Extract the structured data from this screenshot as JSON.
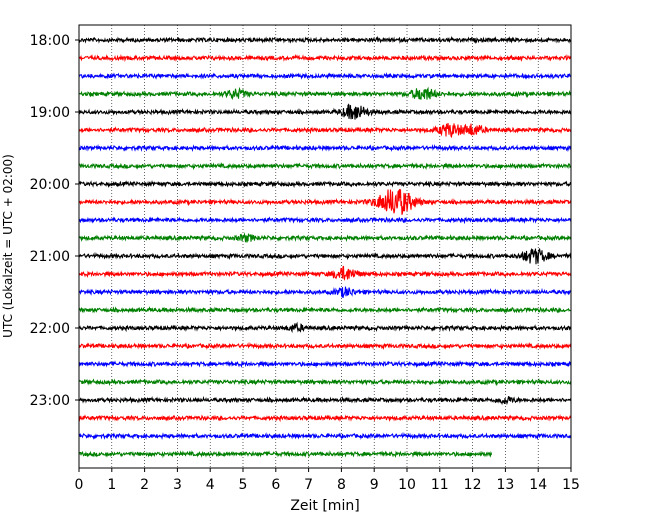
{
  "chart_data": {
    "type": "line",
    "title": "",
    "xlabel": "Zeit  [min]",
    "ylabel": "UTC (Lokalzeit = UTC + 02:00)",
    "xlim": [
      0,
      15
    ],
    "x_ticks": [
      0,
      1,
      2,
      3,
      4,
      5,
      6,
      7,
      8,
      9,
      10,
      11,
      12,
      13,
      14,
      15
    ],
    "x_tick_labels": [
      "0",
      "1",
      "2",
      "3",
      "4",
      "5",
      "6",
      "7",
      "8",
      "9",
      "10",
      "11",
      "12",
      "13",
      "14",
      "15"
    ],
    "y_tick_labels": [
      "18:00",
      "19:00",
      "20:00",
      "21:00",
      "22:00",
      "23:00"
    ],
    "grid": "vertical-dotted",
    "colors": [
      "#000000",
      "#ff0000",
      "#0000ff",
      "#008000"
    ],
    "trace_start_time": "18:00",
    "trace_interval_minutes": 15,
    "traces": [
      {
        "start": "18:00",
        "color": "#000000",
        "end_min": 15,
        "events": []
      },
      {
        "start": "18:15",
        "color": "#ff0000",
        "end_min": 15,
        "events": []
      },
      {
        "start": "18:30",
        "color": "#0000ff",
        "end_min": 15,
        "events": []
      },
      {
        "start": "18:45",
        "color": "#008000",
        "end_min": 15,
        "events": [
          {
            "min": 4.8,
            "amp": 4
          },
          {
            "min": 10.5,
            "amp": 6
          }
        ]
      },
      {
        "start": "19:00",
        "color": "#000000",
        "end_min": 15,
        "events": [
          {
            "min": 8.4,
            "amp": 7
          }
        ]
      },
      {
        "start": "19:15",
        "color": "#ff0000",
        "end_min": 15,
        "events": [
          {
            "min": 11.3,
            "amp": 6
          },
          {
            "min": 12.0,
            "amp": 5
          }
        ]
      },
      {
        "start": "19:30",
        "color": "#0000ff",
        "end_min": 15,
        "events": []
      },
      {
        "start": "19:45",
        "color": "#008000",
        "end_min": 15,
        "events": []
      },
      {
        "start": "20:00",
        "color": "#000000",
        "end_min": 15,
        "events": []
      },
      {
        "start": "20:15",
        "color": "#ff0000",
        "end_min": 15,
        "events": [
          {
            "min": 9.65,
            "amp": 13
          }
        ]
      },
      {
        "start": "20:30",
        "color": "#0000ff",
        "end_min": 15,
        "events": []
      },
      {
        "start": "20:45",
        "color": "#008000",
        "end_min": 15,
        "events": [
          {
            "min": 5.1,
            "amp": 3
          }
        ]
      },
      {
        "start": "21:00",
        "color": "#000000",
        "end_min": 15,
        "events": [
          {
            "min": 13.9,
            "amp": 7
          }
        ]
      },
      {
        "start": "21:15",
        "color": "#ff0000",
        "end_min": 15,
        "events": [
          {
            "min": 8.1,
            "amp": 6
          }
        ]
      },
      {
        "start": "21:30",
        "color": "#0000ff",
        "end_min": 15,
        "events": [
          {
            "min": 8.1,
            "amp": 4
          }
        ]
      },
      {
        "start": "21:45",
        "color": "#008000",
        "end_min": 15,
        "events": []
      },
      {
        "start": "22:00",
        "color": "#000000",
        "end_min": 15,
        "events": [
          {
            "min": 6.6,
            "amp": 3
          }
        ]
      },
      {
        "start": "22:15",
        "color": "#ff0000",
        "end_min": 15,
        "events": []
      },
      {
        "start": "22:30",
        "color": "#0000ff",
        "end_min": 15,
        "events": []
      },
      {
        "start": "22:45",
        "color": "#008000",
        "end_min": 15,
        "events": []
      },
      {
        "start": "23:00",
        "color": "#000000",
        "end_min": 15,
        "events": [
          {
            "min": 13.0,
            "amp": 3
          }
        ]
      },
      {
        "start": "23:15",
        "color": "#ff0000",
        "end_min": 15,
        "events": []
      },
      {
        "start": "23:30",
        "color": "#0000ff",
        "end_min": 15,
        "events": []
      },
      {
        "start": "23:45",
        "color": "#008000",
        "end_min": 12.6,
        "events": []
      }
    ]
  }
}
